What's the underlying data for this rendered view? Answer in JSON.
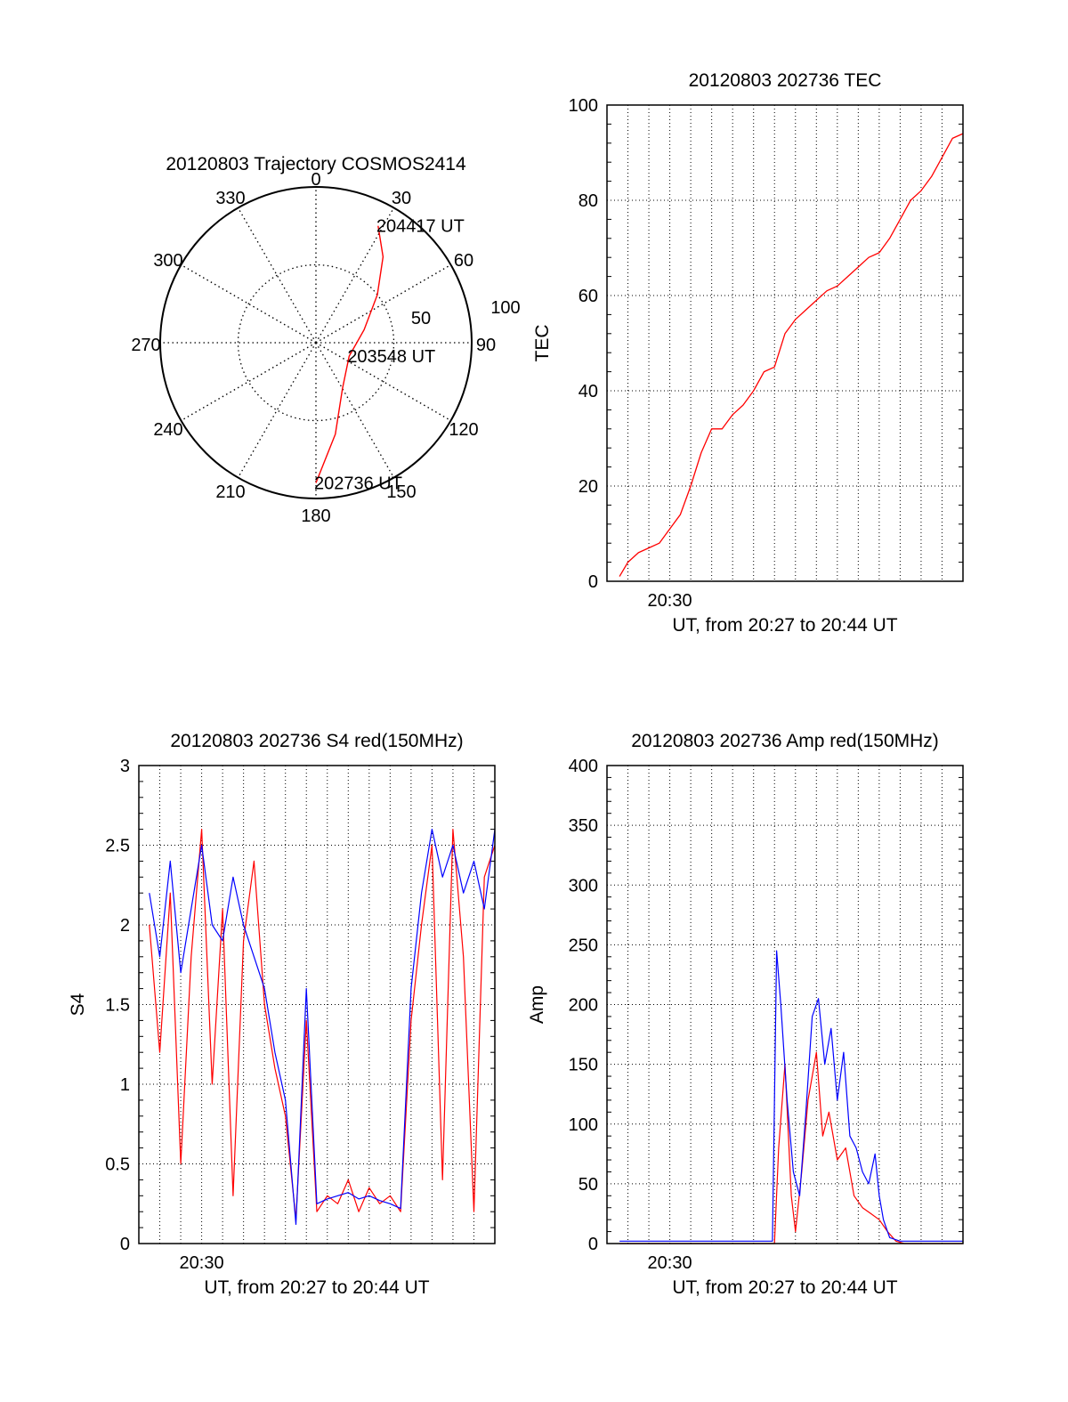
{
  "chart_data": [
    {
      "type": "polar",
      "title": "20120803 Trajectory COSMOS2414",
      "azimuth_labels": [
        "0",
        "30",
        "60",
        "90",
        "120",
        "150",
        "180",
        "210",
        "240",
        "270",
        "300",
        "330"
      ],
      "radial_labels": [
        "50",
        "100"
      ],
      "rlim": [
        0,
        100
      ],
      "grid": true,
      "series": [
        {
          "color": "#ff0000",
          "points": [
            {
              "az": 180,
              "r": 90
            },
            {
              "az": 168,
              "r": 60
            },
            {
              "az": 150,
              "r": 34
            },
            {
              "az": 112,
              "r": 23
            },
            {
              "az": 75,
              "r": 32
            },
            {
              "az": 52,
              "r": 50
            },
            {
              "az": 38,
              "r": 70
            },
            {
              "az": 28,
              "r": 85
            }
          ]
        }
      ],
      "annotations": [
        {
          "text": "204417 UT",
          "az": 28,
          "r": 85
        },
        {
          "text": "203548 UT",
          "az": 112,
          "r": 23
        },
        {
          "text": "202736 UT",
          "az": 180,
          "r": 90
        }
      ]
    },
    {
      "type": "line",
      "title": "20120803 202736 TEC",
      "xlabel": "UT, from 20:27 to 20:44 UT",
      "ylabel": "TEC",
      "x_tick_labels": [
        "20:30"
      ],
      "xlim_minutes": [
        27,
        44
      ],
      "ylim": [
        0,
        100
      ],
      "y_ticks": [
        0,
        20,
        40,
        60,
        80,
        100
      ],
      "grid": true,
      "series": [
        {
          "color": "#ff0000",
          "x_minutes": [
            27.6,
            28.0,
            28.5,
            29.0,
            29.5,
            30.0,
            30.5,
            31.0,
            31.5,
            32.0,
            32.5,
            33.0,
            33.5,
            34.0,
            34.5,
            35.0,
            35.5,
            36.0,
            36.5,
            37.0,
            37.5,
            38.0,
            38.5,
            39.0,
            39.5,
            40.0,
            40.5,
            41.0,
            41.5,
            42.0,
            42.5,
            43.0,
            43.5,
            44.0
          ],
          "values": [
            1,
            4,
            6,
            7,
            8,
            11,
            14,
            20,
            27,
            32,
            32,
            35,
            37,
            40,
            44,
            45,
            52,
            55,
            57,
            59,
            61,
            62,
            64,
            66,
            68,
            69,
            72,
            76,
            80,
            82,
            85,
            89,
            93,
            94
          ]
        }
      ]
    },
    {
      "type": "line",
      "title": "20120803 202736 S4 red(150MHz)",
      "xlabel": "UT, from 20:27 to 20:44 UT",
      "ylabel": "S4",
      "x_tick_labels": [
        "20:30"
      ],
      "xlim_minutes": [
        27,
        44
      ],
      "ylim": [
        0,
        3
      ],
      "y_ticks": [
        0,
        0.5,
        1,
        1.5,
        2,
        2.5,
        3
      ],
      "y_tick_labels": [
        "0",
        "0.5",
        "1",
        "1.5",
        "2",
        "2.5",
        "3"
      ],
      "grid": true,
      "series": [
        {
          "color": "#ff0000",
          "x_minutes": [
            27.5,
            28.0,
            28.5,
            29.0,
            29.5,
            30.0,
            30.5,
            31.0,
            31.5,
            32.0,
            32.5,
            33.0,
            33.5,
            34.0,
            34.5,
            35.0,
            35.5,
            36.0,
            36.5,
            37.0,
            37.5,
            38.0,
            38.5,
            39.0,
            39.5,
            40.0,
            40.5,
            41.0,
            41.5,
            42.0,
            42.5,
            43.0,
            43.5,
            44.0
          ],
          "values": [
            2.0,
            1.2,
            2.2,
            0.5,
            1.8,
            2.6,
            1.0,
            2.1,
            0.3,
            1.9,
            2.4,
            1.5,
            1.1,
            0.8,
            0.15,
            1.4,
            0.2,
            0.3,
            0.25,
            0.4,
            0.2,
            0.35,
            0.25,
            0.3,
            0.2,
            1.4,
            2.0,
            2.5,
            0.4,
            2.6,
            1.8,
            0.2,
            2.3,
            2.5
          ]
        },
        {
          "color": "#0000ff",
          "x_minutes": [
            27.5,
            28.0,
            28.5,
            29.0,
            29.5,
            30.0,
            30.5,
            31.0,
            31.5,
            32.0,
            32.5,
            33.0,
            33.5,
            34.0,
            34.5,
            35.0,
            35.5,
            36.0,
            36.5,
            37.0,
            37.5,
            38.0,
            38.5,
            39.0,
            39.5,
            40.0,
            40.5,
            41.0,
            41.5,
            42.0,
            42.5,
            43.0,
            43.5,
            44.0
          ],
          "values": [
            2.2,
            1.8,
            2.4,
            1.7,
            2.1,
            2.5,
            2.0,
            1.9,
            2.3,
            2.0,
            1.8,
            1.6,
            1.2,
            0.9,
            0.12,
            1.6,
            0.25,
            0.28,
            0.3,
            0.32,
            0.28,
            0.3,
            0.27,
            0.25,
            0.22,
            1.6,
            2.2,
            2.6,
            2.3,
            2.5,
            2.2,
            2.4,
            2.1,
            2.6
          ]
        }
      ]
    },
    {
      "type": "line",
      "title": "20120803 202736 Amp red(150MHz)",
      "xlabel": "UT, from 20:27 to 20:44 UT",
      "ylabel": "Amp",
      "x_tick_labels": [
        "20:30"
      ],
      "xlim_minutes": [
        27,
        44
      ],
      "ylim": [
        0,
        400
      ],
      "y_ticks": [
        0,
        50,
        100,
        150,
        200,
        250,
        300,
        350,
        400
      ],
      "grid": true,
      "series": [
        {
          "color": "#ff0000",
          "x_minutes": [
            27.6,
            35.0,
            35.2,
            35.5,
            35.8,
            36.0,
            36.3,
            36.6,
            37.0,
            37.3,
            37.6,
            38.0,
            38.4,
            38.8,
            39.2,
            39.6,
            40.0,
            40.4,
            40.8,
            41.2,
            44.0
          ],
          "values": [
            0,
            0,
            80,
            150,
            40,
            10,
            60,
            120,
            160,
            90,
            110,
            70,
            80,
            40,
            30,
            25,
            20,
            10,
            2,
            0,
            0
          ]
        },
        {
          "color": "#0000ff",
          "x_minutes": [
            27.6,
            34.9,
            35.1,
            35.3,
            35.6,
            35.9,
            36.2,
            36.5,
            36.8,
            37.1,
            37.4,
            37.7,
            38.0,
            38.3,
            38.6,
            38.9,
            39.2,
            39.5,
            39.8,
            40.0,
            40.2,
            40.5,
            41.0,
            44.0
          ],
          "values": [
            2,
            2,
            245,
            200,
            120,
            60,
            40,
            110,
            190,
            205,
            150,
            180,
            120,
            160,
            90,
            80,
            60,
            50,
            75,
            40,
            20,
            5,
            2,
            2
          ]
        }
      ]
    }
  ]
}
